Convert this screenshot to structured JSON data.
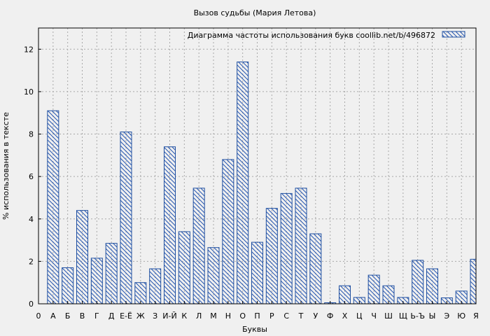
{
  "chart_data": {
    "type": "bar",
    "title": "Вызов судьбы (Мария Летова)",
    "xlabel": "Буквы",
    "ylabel": "% использования в тексте",
    "legend": "Диаграмма частоты использования букв  coollib.net/b/496872",
    "legend_position": "top-right",
    "grid": true,
    "ylim": [
      0,
      13
    ],
    "yticks": [
      0,
      2,
      4,
      6,
      8,
      10,
      12
    ],
    "x_tick_labels": [
      "0",
      "А",
      "Б",
      "В",
      "Г",
      "Д",
      "Е-Ё",
      "Ж",
      "З",
      "И-Й",
      "К",
      "Л",
      "М",
      "Н",
      "О",
      "П",
      "Р",
      "С",
      "Т",
      "У",
      "Ф",
      "Х",
      "Ц",
      "Ч",
      "Ш",
      "Щ",
      "Ь-Ъ",
      "Ы",
      "Э",
      "Ю",
      "Я"
    ],
    "categories": [
      "А",
      "Б",
      "В",
      "Г",
      "Д",
      "Е-Ё",
      "Ж",
      "З",
      "И-Й",
      "К",
      "Л",
      "М",
      "Н",
      "О",
      "П",
      "Р",
      "С",
      "Т",
      "У",
      "Ф",
      "Х",
      "Ц",
      "Ч",
      "Ш",
      "Щ",
      "Ь-Ъ",
      "Ы",
      "Э",
      "Ю",
      "Я"
    ],
    "values": [
      9.1,
      1.7,
      4.4,
      2.15,
      2.85,
      8.1,
      1.0,
      1.65,
      7.4,
      3.4,
      5.45,
      2.65,
      6.8,
      11.4,
      2.9,
      4.5,
      5.2,
      5.45,
      3.3,
      0.05,
      0.85,
      0.3,
      1.35,
      0.85,
      0.3,
      2.05,
      1.65,
      0.28,
      0.6,
      2.1
    ]
  },
  "colors": {
    "bar_stroke": "#1f4fa0",
    "hatch": "#2555b0",
    "grid": "#a8a8a8",
    "background": "#f0f0f0"
  }
}
